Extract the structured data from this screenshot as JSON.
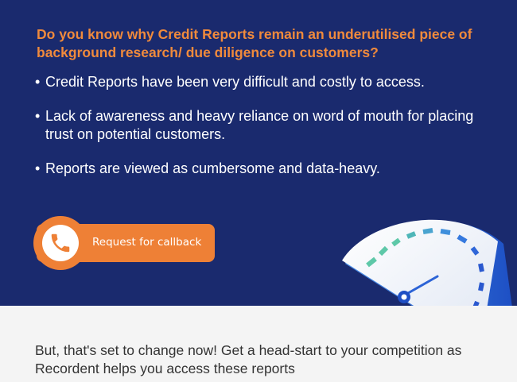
{
  "hero": {
    "question": "Do you know why Credit Reports remain an underutilised piece of background research/ due diligence on customers?",
    "bullets": [
      "Credit Reports have been very difficult and costly to access.",
      "Lack of awareness and heavy reliance on word of mouth for placing trust on potential customers.",
      "Reports are viewed as cumbersome and data-heavy."
    ],
    "cta_label": "Request for callback",
    "cta_icon": "phone-icon"
  },
  "gauge_icon": "speedometer-gauge-icon",
  "bottom_text": "But, that's set to change now! Get a head-start to your competition as Recordent helps you access these reports",
  "colors": {
    "hero_bg": "#1a2a6e",
    "accent_orange": "#ee8036",
    "heading_orange": "#f08a3c",
    "text_white": "#ffffff",
    "body_text": "#333333",
    "page_bg": "#f4f4f4"
  }
}
